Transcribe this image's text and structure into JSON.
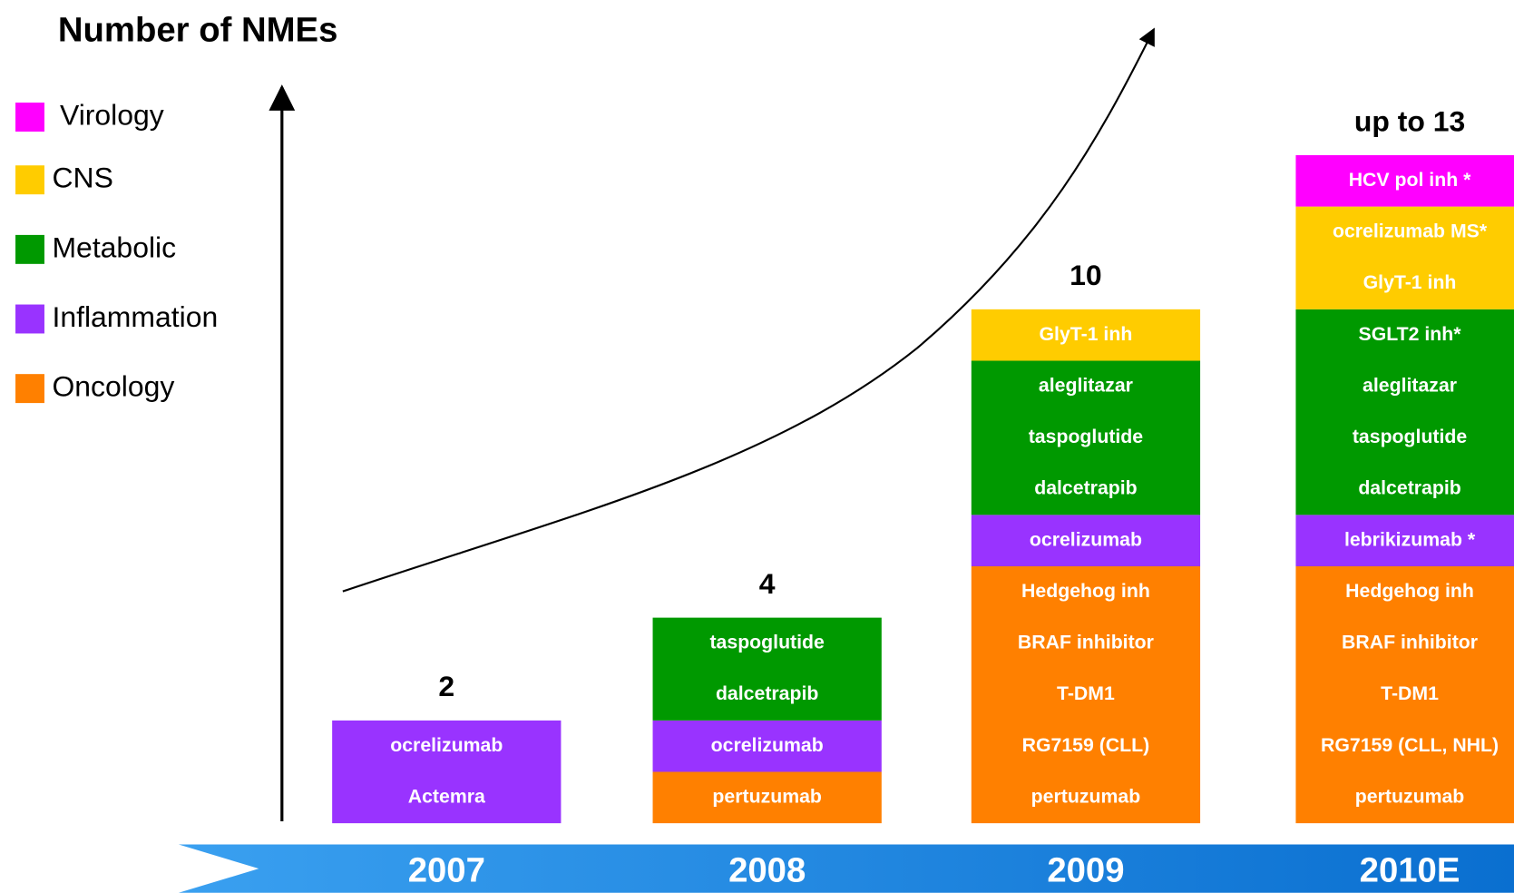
{
  "title": "Number of NMEs",
  "legend": [
    {
      "name": "Virology",
      "color": "#ff00ff"
    },
    {
      "name": "CNS",
      "color": "#ffcc00"
    },
    {
      "name": "Metabolic",
      "color": "#009900"
    },
    {
      "name": "Inflammation",
      "color": "#9933ff"
    },
    {
      "name": "Oncology",
      "color": "#ff8000"
    }
  ],
  "columns": [
    {
      "year": "2007",
      "total": "2",
      "blocks": [
        {
          "category": 3,
          "labels": [
            "Actemra",
            "ocrelizumab"
          ]
        }
      ]
    },
    {
      "year": "2008",
      "total": "4",
      "blocks": [
        {
          "category": 4,
          "labels": [
            "pertuzumab"
          ]
        },
        {
          "category": 3,
          "labels": [
            "ocrelizumab"
          ]
        },
        {
          "category": 2,
          "labels": [
            "dalcetrapib",
            "taspoglutide"
          ]
        }
      ]
    },
    {
      "year": "2009",
      "total": "10",
      "blocks": [
        {
          "category": 4,
          "labels": [
            "pertuzumab",
            "RG7159 (CLL)",
            "T-DM1",
            "BRAF inhibitor",
            "Hedgehog inh"
          ]
        },
        {
          "category": 3,
          "labels": [
            "ocrelizumab"
          ]
        },
        {
          "category": 2,
          "labels": [
            "dalcetrapib",
            "taspoglutide",
            "aleglitazar"
          ]
        },
        {
          "category": 1,
          "labels": [
            "GlyT-1 inh"
          ]
        }
      ]
    },
    {
      "year": "2010E",
      "total": "up to 13",
      "blocks": [
        {
          "category": 4,
          "labels": [
            "pertuzumab",
            "RG7159 (CLL, NHL)",
            "T-DM1",
            "BRAF inhibitor",
            "Hedgehog inh"
          ]
        },
        {
          "category": 3,
          "labels": [
            "lebrikizumab *"
          ]
        },
        {
          "category": 2,
          "labels": [
            "dalcetrapib",
            "taspoglutide",
            "aleglitazar",
            "SGLT2 inh*"
          ]
        },
        {
          "category": 1,
          "labels": [
            "GlyT-1 inh",
            "ocrelizumab MS*"
          ]
        },
        {
          "category": 0,
          "labels": [
            "HCV pol inh *"
          ]
        }
      ]
    }
  ]
}
